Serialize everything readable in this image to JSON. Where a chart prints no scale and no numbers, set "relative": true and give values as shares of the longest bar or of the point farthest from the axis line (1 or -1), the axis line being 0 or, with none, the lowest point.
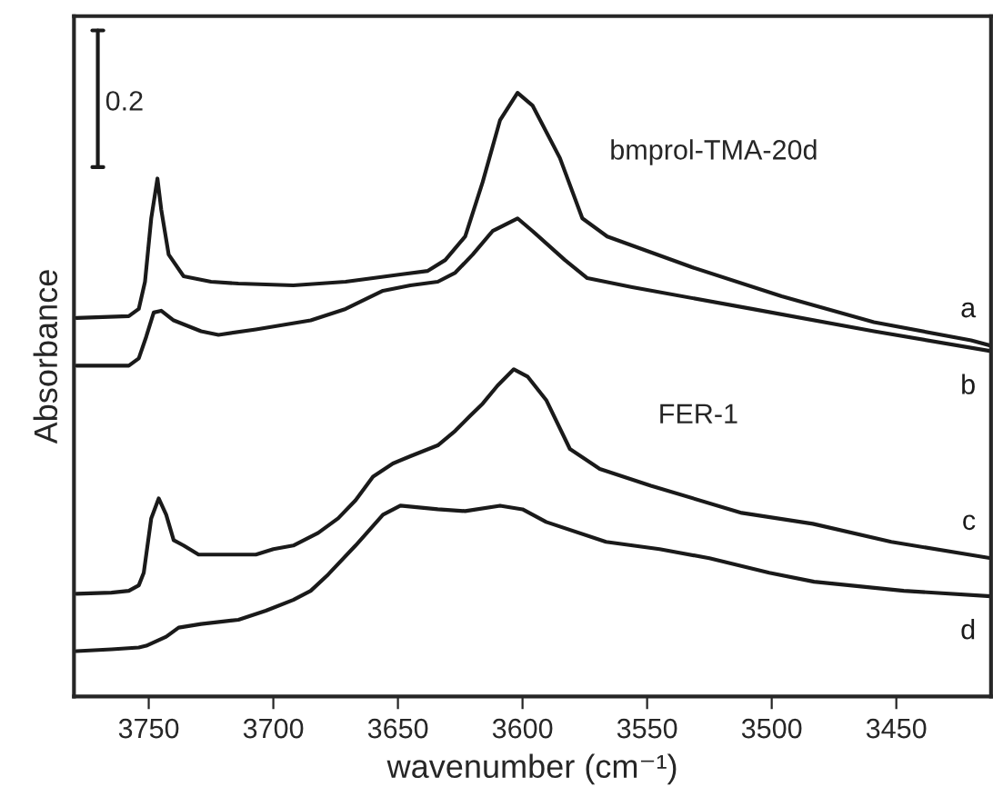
{
  "chart_data": {
    "type": "line",
    "relative": true,
    "xlabel": "wavenumber (cm⁻¹)",
    "ylabel": "Absorbance",
    "xlim": [
      3780,
      3412
    ],
    "xticks": [
      3750,
      3700,
      3650,
      3600,
      3550,
      3500,
      3450
    ],
    "tick_labels": "x",
    "grid": false,
    "legend": false,
    "marker": "none",
    "line_style": "solid",
    "annotations": [
      "0.2",
      "bmprol-TMA-20d",
      "FER-1"
    ],
    "series": [
      {
        "name": "a",
        "color": "#1a1a1a",
        "x": [
          3779,
          3758,
          3754,
          3751.5,
          3749,
          3746.5,
          3745,
          3742,
          3736,
          3725,
          3714,
          3692,
          3671,
          3649,
          3638,
          3631,
          3623,
          3616,
          3609,
          3602,
          3596,
          3585,
          3576,
          3566,
          3532,
          3496,
          3459,
          3420,
          3412
        ],
        "values": [
          0.627,
          0.63,
          0.642,
          0.687,
          0.792,
          0.858,
          0.807,
          0.732,
          0.696,
          0.687,
          0.684,
          0.681,
          0.687,
          0.699,
          0.705,
          0.723,
          0.762,
          0.852,
          0.955,
          1.0,
          0.979,
          0.892,
          0.792,
          0.762,
          0.711,
          0.663,
          0.62,
          0.59,
          0.581
        ]
      },
      {
        "name": "b",
        "color": "#1a1a1a",
        "x": [
          3779,
          3758,
          3754,
          3751,
          3748,
          3745,
          3740,
          3729,
          3722,
          3707,
          3685,
          3671,
          3656,
          3645,
          3634,
          3627,
          3620,
          3612,
          3602,
          3596,
          3583,
          3574,
          3556,
          3508,
          3459,
          3412
        ],
        "values": [
          0.548,
          0.548,
          0.56,
          0.596,
          0.636,
          0.639,
          0.623,
          0.605,
          0.599,
          0.608,
          0.623,
          0.642,
          0.672,
          0.681,
          0.687,
          0.702,
          0.732,
          0.771,
          0.792,
          0.771,
          0.723,
          0.693,
          0.678,
          0.642,
          0.605,
          0.572
        ]
      },
      {
        "name": "c",
        "color": "#1a1a1a",
        "x": [
          3779,
          3765,
          3758,
          3754,
          3752,
          3749,
          3746,
          3743,
          3740,
          3736,
          3730,
          3718,
          3707,
          3700,
          3692,
          3682,
          3674,
          3667,
          3660,
          3652,
          3645,
          3634,
          3627,
          3621,
          3616,
          3610,
          3603.5,
          3598,
          3590.5,
          3581,
          3569,
          3548.5,
          3512,
          3483.5,
          3452,
          3412
        ],
        "values": [
          0.17,
          0.172,
          0.175,
          0.184,
          0.205,
          0.295,
          0.328,
          0.301,
          0.259,
          0.25,
          0.235,
          0.235,
          0.235,
          0.244,
          0.25,
          0.271,
          0.295,
          0.325,
          0.364,
          0.386,
          0.398,
          0.416,
          0.44,
          0.465,
          0.485,
          0.515,
          0.542,
          0.53,
          0.491,
          0.41,
          0.377,
          0.349,
          0.304,
          0.286,
          0.256,
          0.229
        ]
      },
      {
        "name": "d",
        "color": "#1a1a1a",
        "x": [
          3779,
          3765,
          3754,
          3751,
          3743,
          3738,
          3729,
          3714,
          3703,
          3692,
          3685,
          3678,
          3667,
          3656,
          3649,
          3634,
          3623,
          3609,
          3600,
          3590.5,
          3566.5,
          3545,
          3525,
          3501,
          3483,
          3447,
          3412
        ],
        "values": [
          0.075,
          0.078,
          0.081,
          0.084,
          0.099,
          0.114,
          0.12,
          0.127,
          0.142,
          0.16,
          0.175,
          0.202,
          0.25,
          0.301,
          0.316,
          0.31,
          0.307,
          0.316,
          0.31,
          0.289,
          0.256,
          0.244,
          0.229,
          0.205,
          0.19,
          0.175,
          0.166
        ]
      }
    ]
  }
}
